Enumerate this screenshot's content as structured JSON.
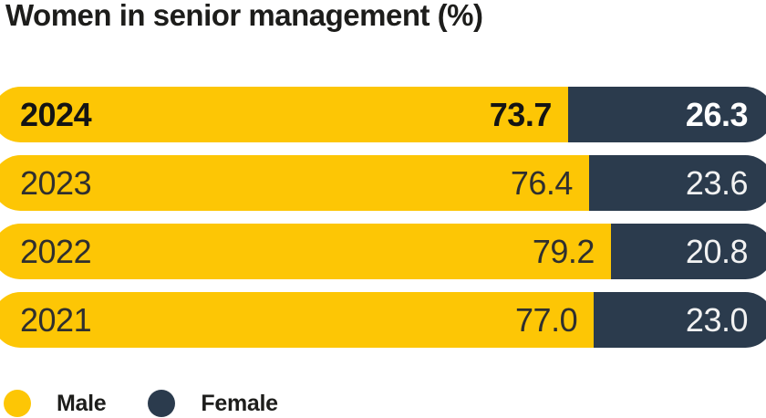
{
  "title": "Women in senior management (%)",
  "colors": {
    "male_yellow": "#FDC605",
    "female_navy": "#2B3B4D",
    "title_text": "#1D1D1B"
  },
  "legend": {
    "male_label": "Male",
    "female_label": "Female"
  },
  "chart_data": {
    "type": "bar",
    "orientation": "horizontal",
    "stacked": true,
    "unit": "%",
    "title": "Women in senior management (%)",
    "categories": [
      "2024",
      "2023",
      "2022",
      "2021"
    ],
    "series": [
      {
        "name": "Male",
        "color": "#FDC605",
        "values": [
          73.7,
          76.4,
          79.2,
          77.0
        ]
      },
      {
        "name": "Female",
        "color": "#2B3B4D",
        "values": [
          26.3,
          23.6,
          20.8,
          23.0
        ]
      }
    ],
    "xlim": [
      0,
      100
    ],
    "legend_position": "bottom-left",
    "grid": false,
    "rows": [
      {
        "year": "2024",
        "male_pct": 73.7,
        "male_label": "73.7",
        "female_pct": 26.3,
        "female_label": "26.3"
      },
      {
        "year": "2023",
        "male_pct": 76.4,
        "male_label": "76.4",
        "female_pct": 23.6,
        "female_label": "23.6"
      },
      {
        "year": "2022",
        "male_pct": 79.2,
        "male_label": "79.2",
        "female_pct": 20.8,
        "female_label": "20.8"
      },
      {
        "year": "2021",
        "male_pct": 77.0,
        "male_label": "77.0",
        "female_pct": 23.0,
        "female_label": "23.0"
      }
    ]
  }
}
